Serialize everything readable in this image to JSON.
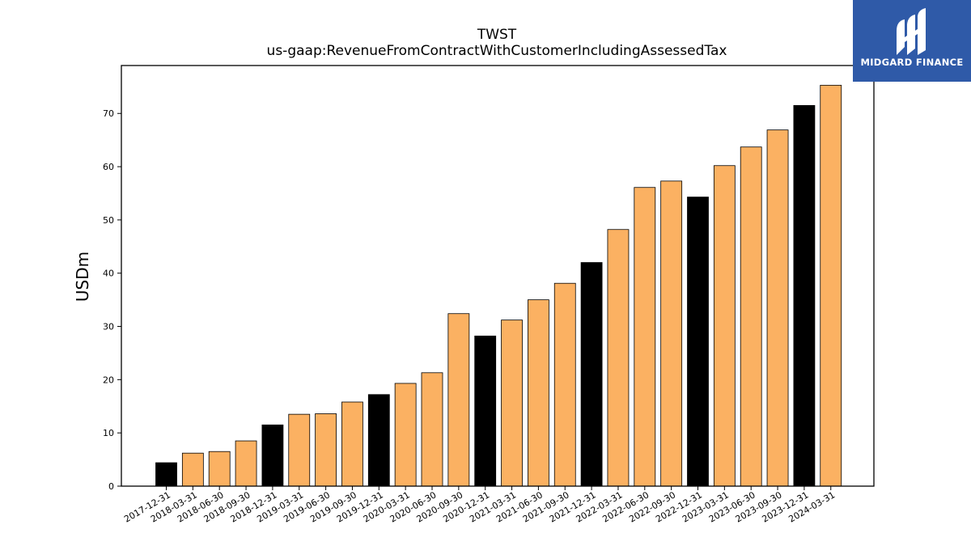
{
  "brand": {
    "name": "MIDGARD FINANCE",
    "logo_bg": "#2f5aa8",
    "logo_icon": "midgard-m-icon"
  },
  "chart_data": {
    "type": "bar",
    "title": "TWST",
    "subtitle": "us-gaap:RevenueFromContractWithCustomerIncludingAssessedTax",
    "xlabel": "",
    "ylabel": "USDm",
    "ylim": [
      0,
      79
    ],
    "yticks": [
      0,
      10,
      20,
      30,
      40,
      50,
      60,
      70
    ],
    "grid": false,
    "colors": {
      "quarter": "#fbb162",
      "year_end": "#000000",
      "edge": "#000000"
    },
    "categories": [
      "2017-12-31",
      "2018-03-31",
      "2018-06-30",
      "2018-09-30",
      "2018-12-31",
      "2019-03-31",
      "2019-06-30",
      "2019-09-30",
      "2019-12-31",
      "2020-03-31",
      "2020-06-30",
      "2020-09-30",
      "2020-12-31",
      "2021-03-31",
      "2021-06-30",
      "2021-09-30",
      "2021-12-31",
      "2022-03-31",
      "2022-06-30",
      "2022-09-30",
      "2022-12-31",
      "2023-03-31",
      "2023-06-30",
      "2023-09-30",
      "2023-12-31",
      "2024-03-31"
    ],
    "values": [
      4.4,
      6.2,
      6.5,
      8.5,
      11.5,
      13.5,
      13.6,
      15.8,
      17.2,
      19.3,
      21.3,
      32.4,
      28.2,
      31.2,
      35.0,
      38.1,
      42.0,
      48.2,
      56.1,
      57.3,
      54.3,
      60.2,
      63.7,
      66.9,
      71.5,
      75.3
    ],
    "year_end": [
      true,
      false,
      false,
      false,
      true,
      false,
      false,
      false,
      true,
      false,
      false,
      false,
      true,
      false,
      false,
      false,
      true,
      false,
      false,
      false,
      true,
      false,
      false,
      false,
      true,
      false
    ]
  }
}
